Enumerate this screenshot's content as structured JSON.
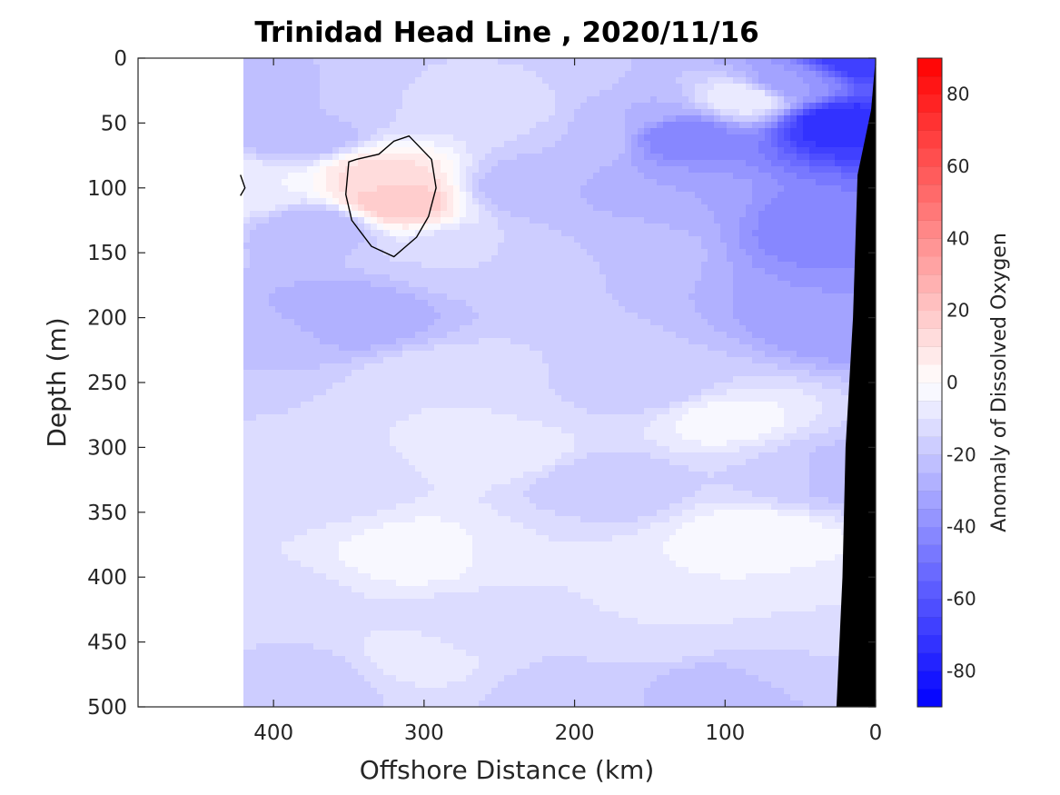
{
  "chart_data": {
    "type": "heatmap",
    "title": "Trinidad Head Line , 2020/11/16",
    "xlabel": "Offshore Distance (km)",
    "ylabel": "Depth (m)",
    "xlim": [
      490,
      0
    ],
    "ylim": [
      0,
      500
    ],
    "x_ticks": [
      "400",
      "300",
      "200",
      "100",
      "0"
    ],
    "x_tick_values": [
      400,
      300,
      200,
      100,
      0
    ],
    "y_ticks": [
      "0",
      "50",
      "100",
      "150",
      "200",
      "250",
      "300",
      "350",
      "400",
      "450",
      "500"
    ],
    "y_tick_values": [
      0,
      50,
      100,
      150,
      200,
      250,
      300,
      350,
      400,
      450,
      500
    ],
    "data_coverage_max_distance_km": 420,
    "colorbar": {
      "label": "Anomaly of Dissolved Oxygen",
      "range": [
        -90,
        90
      ],
      "level_step": 5,
      "ticks": [
        "80",
        "60",
        "40",
        "20",
        "0",
        "-20",
        "-40",
        "-60",
        "-80"
      ],
      "tick_values": [
        80,
        60,
        40,
        20,
        0,
        -20,
        -40,
        -60,
        -80
      ],
      "color_negative_end": "#0000ff",
      "color_zero": "#ffffff",
      "color_positive_end": "#ff0000"
    },
    "contour_lines": [
      {
        "level": 0,
        "color": "#000000"
      }
    ],
    "field_samples": [
      {
        "x": 10,
        "y": 0,
        "value": -70
      },
      {
        "x": 25,
        "y": 50,
        "value": -75
      },
      {
        "x": 30,
        "y": 130,
        "value": -45
      },
      {
        "x": 20,
        "y": 200,
        "value": -35
      },
      {
        "x": 60,
        "y": 20,
        "value": -35
      },
      {
        "x": 85,
        "y": 30,
        "value": -5
      },
      {
        "x": 130,
        "y": 60,
        "value": -45
      },
      {
        "x": 140,
        "y": 110,
        "value": -30
      },
      {
        "x": 160,
        "y": 40,
        "value": -25
      },
      {
        "x": 170,
        "y": 140,
        "value": -20
      },
      {
        "x": 190,
        "y": 60,
        "value": -20
      },
      {
        "x": 215,
        "y": 20,
        "value": -15
      },
      {
        "x": 230,
        "y": 100,
        "value": -25
      },
      {
        "x": 250,
        "y": 40,
        "value": -10
      },
      {
        "x": 270,
        "y": 150,
        "value": -15
      },
      {
        "x": 320,
        "y": 110,
        "value": 20
      },
      {
        "x": 330,
        "y": 90,
        "value": 12
      },
      {
        "x": 350,
        "y": 200,
        "value": -30
      },
      {
        "x": 370,
        "y": 130,
        "value": -25
      },
      {
        "x": 400,
        "y": 30,
        "value": -25
      },
      {
        "x": 410,
        "y": 220,
        "value": -20
      },
      {
        "x": 415,
        "y": 100,
        "value": -5
      },
      {
        "x": 380,
        "y": 60,
        "value": -25
      },
      {
        "x": 340,
        "y": 30,
        "value": -15
      },
      {
        "x": 290,
        "y": 250,
        "value": -10
      },
      {
        "x": 250,
        "y": 300,
        "value": -5
      },
      {
        "x": 200,
        "y": 260,
        "value": -15
      },
      {
        "x": 150,
        "y": 250,
        "value": -20
      },
      {
        "x": 100,
        "y": 280,
        "value": -3
      },
      {
        "x": 80,
        "y": 370,
        "value": 0
      },
      {
        "x": 60,
        "y": 320,
        "value": -15
      },
      {
        "x": 30,
        "y": 320,
        "value": -25
      },
      {
        "x": 30,
        "y": 420,
        "value": -10
      },
      {
        "x": 120,
        "y": 400,
        "value": -5
      },
      {
        "x": 180,
        "y": 330,
        "value": -20
      },
      {
        "x": 230,
        "y": 380,
        "value": -10
      },
      {
        "x": 300,
        "y": 380,
        "value": -2
      },
      {
        "x": 360,
        "y": 330,
        "value": -12
      },
      {
        "x": 400,
        "y": 320,
        "value": -15
      },
      {
        "x": 400,
        "y": 420,
        "value": -12
      },
      {
        "x": 380,
        "y": 480,
        "value": -18
      },
      {
        "x": 300,
        "y": 460,
        "value": -8
      },
      {
        "x": 200,
        "y": 490,
        "value": -18
      },
      {
        "x": 100,
        "y": 490,
        "value": -25
      },
      {
        "x": 50,
        "y": 470,
        "value": -15
      },
      {
        "x": 260,
        "y": 440,
        "value": -15
      },
      {
        "x": 150,
        "y": 440,
        "value": -10
      }
    ]
  }
}
